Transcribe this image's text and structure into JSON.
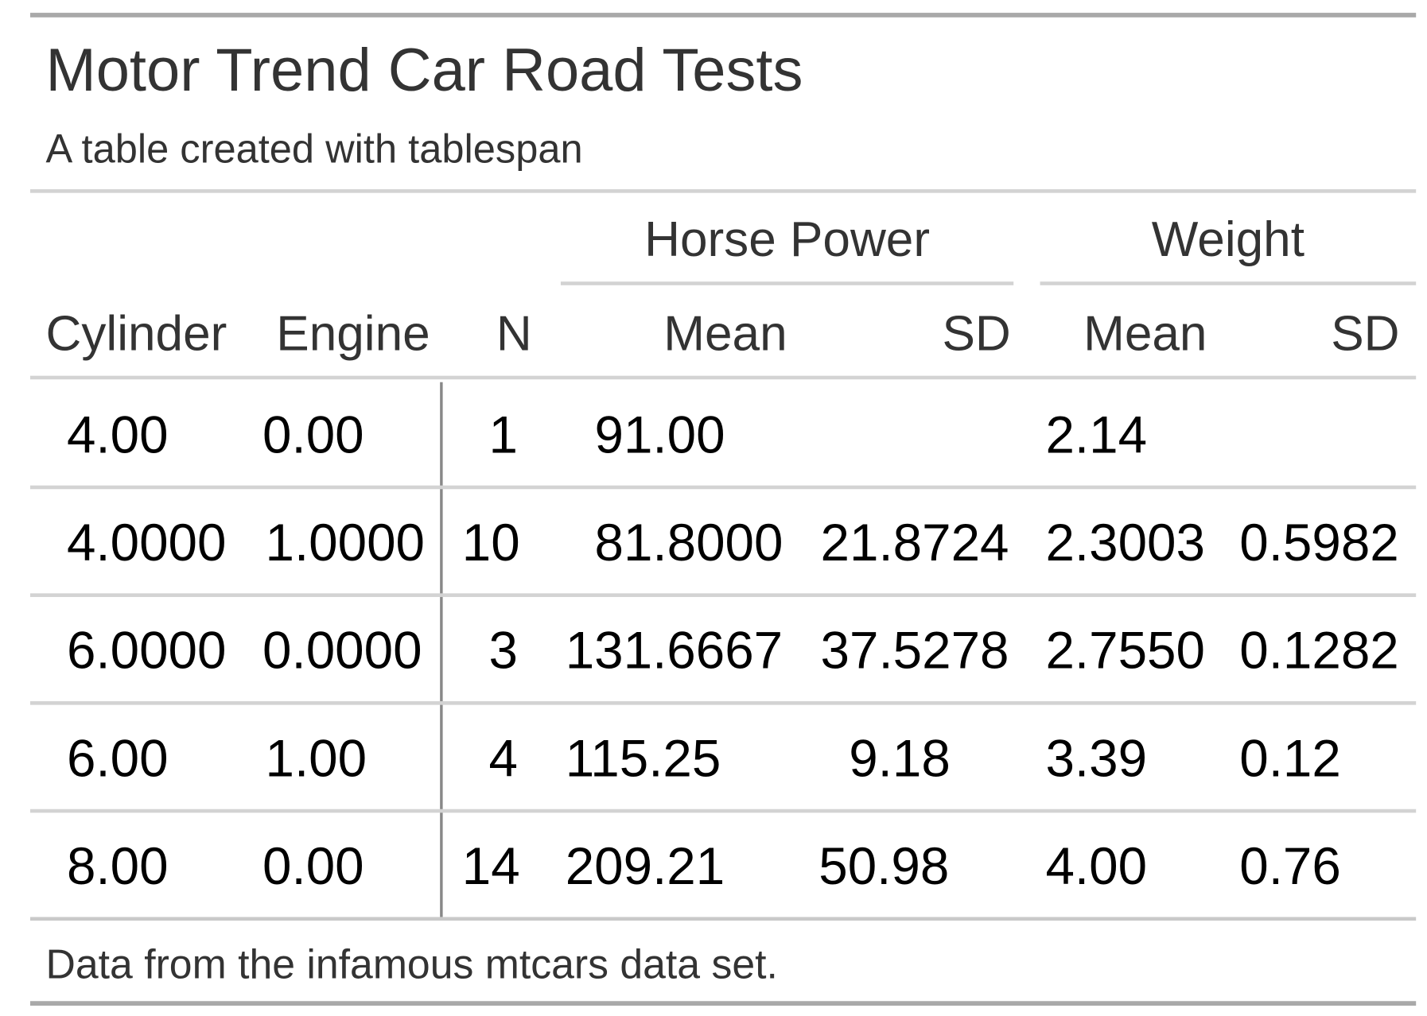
{
  "table": {
    "title": "Motor Trend Car Road Tests",
    "subtitle": "A table created with tablespan",
    "spanners": [
      "Horse Power",
      "Weight"
    ],
    "columns": [
      "Cylinder",
      "Engine",
      "N",
      "Mean",
      "SD",
      "Mean",
      "SD"
    ],
    "rows": [
      [
        "4.00",
        "0.00",
        "1",
        "91.00",
        "",
        "2.14",
        ""
      ],
      [
        "4.0000",
        "1.0000",
        "10",
        "81.8000",
        "21.8724",
        "2.3003",
        "0.5982"
      ],
      [
        "6.0000",
        "0.0000",
        "3",
        "131.6667",
        "37.5278",
        "2.7550",
        "0.1282"
      ],
      [
        "6.00",
        "1.00",
        "4",
        "115.25",
        "9.18",
        "3.39",
        "0.12"
      ],
      [
        "8.00",
        "0.00",
        "14",
        "209.21",
        "50.98",
        "4.00",
        "0.76"
      ]
    ],
    "footnote": "Data from the infamous mtcars data set.",
    "colors": {
      "rule_outer": "#a9a9a9",
      "rule_inner": "#d3d3d3",
      "text": "#333333"
    }
  }
}
